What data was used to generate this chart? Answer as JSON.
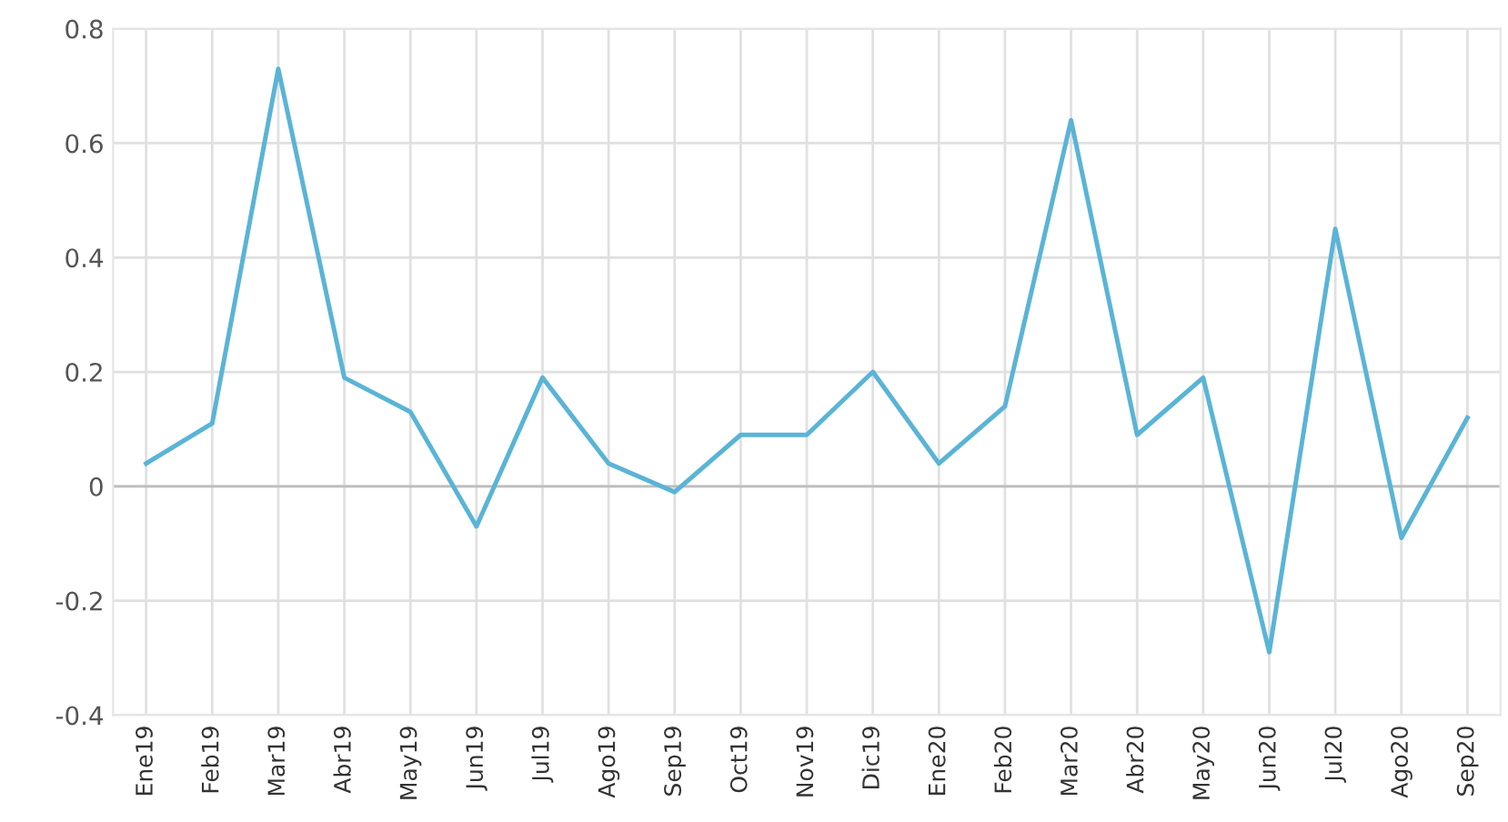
{
  "chart_data": {
    "type": "line",
    "categories": [
      "Ene19",
      "Feb19",
      "Mar19",
      "Abr19",
      "May19",
      "Jun19",
      "Jul19",
      "Ago19",
      "Sep19",
      "Oct19",
      "Nov19",
      "Dic19",
      "Ene20",
      "Feb20",
      "Mar20",
      "Abr20",
      "May20",
      "Jun20",
      "Jul20",
      "Ago20",
      "Sep20"
    ],
    "series": [
      {
        "color": "#5ab4d6",
        "values": [
          0.04,
          0.11,
          0.73,
          0.19,
          0.13,
          -0.07,
          0.19,
          0.04,
          -0.01,
          0.09,
          0.09,
          0.2,
          0.04,
          0.14,
          0.64,
          0.09,
          0.19,
          -0.29,
          0.45,
          -0.09,
          0.12
        ]
      }
    ],
    "ylim": [
      -0.4,
      0.8
    ],
    "yticks": [
      -0.4,
      -0.2,
      0,
      0.2,
      0.4,
      0.6,
      0.8
    ],
    "grid": true,
    "marker": "none",
    "line_style": "solid"
  }
}
